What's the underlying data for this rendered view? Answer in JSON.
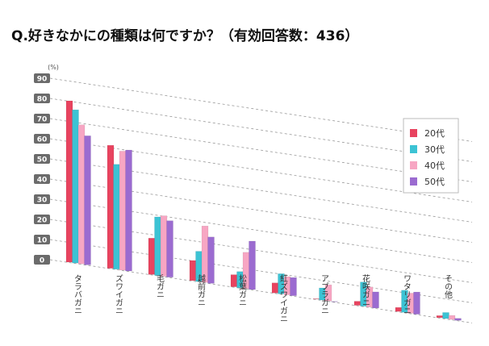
{
  "chart_data": {
    "type": "bar",
    "title": "Q.好きなかにの種類は何ですか？（有効回答数：436）",
    "unit_label": "(%)",
    "ylim": [
      0,
      90
    ],
    "yticks": [
      "0",
      "10",
      "20",
      "30",
      "40",
      "50",
      "60",
      "70",
      "80",
      "90"
    ],
    "categories": [
      "タラバガニ",
      "ズワイガニ",
      "毛ガニ",
      "越前ガニ",
      "松葉ガニ",
      "紅ズワイガニ",
      "アブラガニ",
      "花咲ガニ",
      "ワタリガニ",
      "その他"
    ],
    "series": [
      {
        "name": "20代",
        "color": "#e8435f",
        "values": [
          80,
          61,
          18,
          10,
          6,
          5,
          0,
          2,
          2,
          1
        ]
      },
      {
        "name": "30代",
        "color": "#3cc3d4",
        "values": [
          76,
          52,
          29,
          15,
          8,
          10,
          6,
          12,
          11,
          3
        ]
      },
      {
        "name": "40代",
        "color": "#f7a6c3",
        "values": [
          69,
          59,
          30,
          28,
          18,
          9,
          8,
          10,
          10,
          2
        ]
      },
      {
        "name": "50代",
        "color": "#9b6bd0",
        "values": [
          64,
          60,
          28,
          23,
          24,
          9,
          0,
          8,
          11,
          1
        ]
      }
    ],
    "legend_position": "right",
    "grid": true
  }
}
